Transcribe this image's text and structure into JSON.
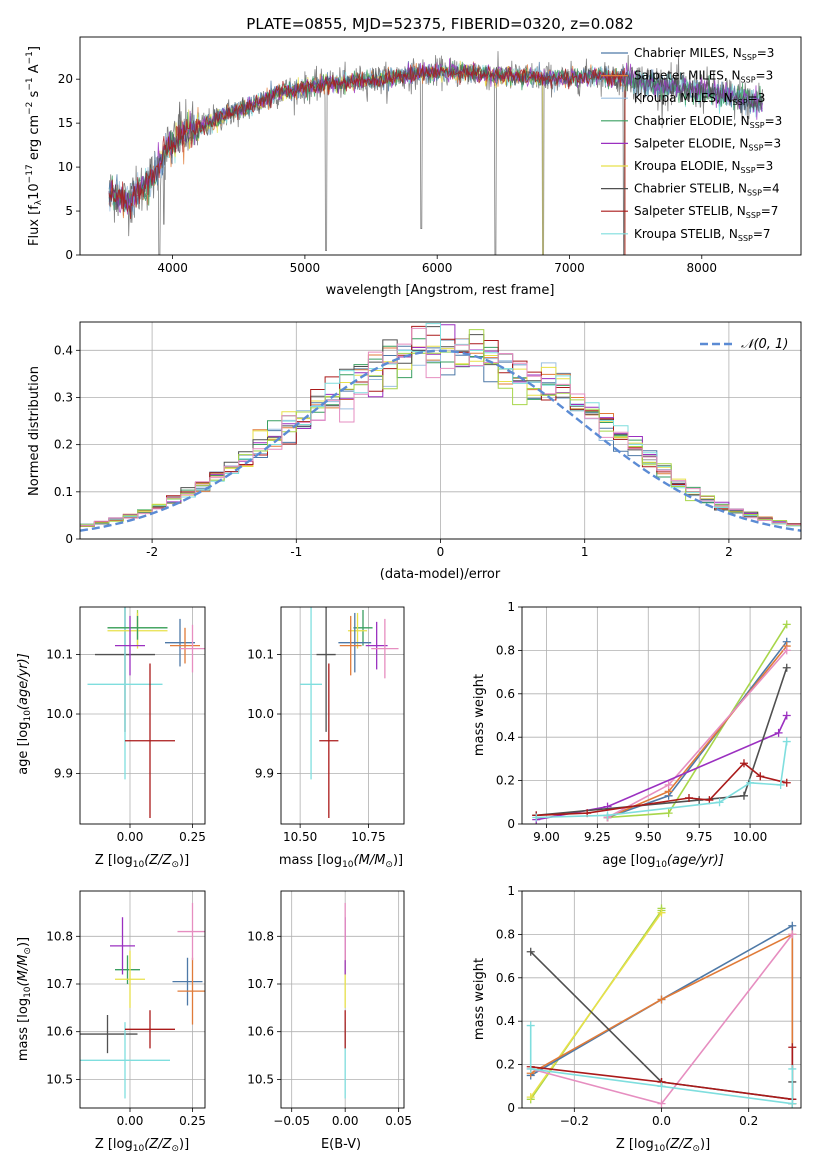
{
  "colors": {
    "Chabrier MILES": "#4e79a7",
    "Salpeter MILES": "#e07b39",
    "Kroupa MILES": "#9bbfe0",
    "Chabrier ELODIE": "#3a9f61",
    "Salpeter ELODIE": "#9b30c0",
    "Kroupa ELODIE": "#e8e04a",
    "Chabrier STELIB": "#505050",
    "Salpeter STELIB": "#aa1a1a",
    "Kroupa STELIB": "#7fdede",
    "extra1": "#a8d64a",
    "extra2": "#e68ec0",
    "gauss": "#5b8bd4",
    "grid": "#b0b0b0"
  },
  "chart_data": [
    {
      "id": "spectrum",
      "type": "line",
      "title": "PLATE=0855, MJD=52375, FIBERID=0320, z=0.082",
      "xlabel": "wavelength [Angstrom, rest frame]",
      "ylabel_main": "Flux [f",
      "ylabel_sub": "λ",
      "ylabel_rest": "10",
      "ylabel_exp": "−17",
      "ylabel_unit": " erg cm",
      "ylabel_exp2": "−2",
      "ylabel_unit2": " s",
      "ylabel_exp3": "−1",
      "ylabel_unit3": " A",
      "ylabel_exp4": "−1",
      "ylabel_end": "]",
      "xlim": [
        3300,
        8750
      ],
      "ylim": [
        0,
        24.8
      ],
      "xticks": [
        4000,
        5000,
        6000,
        7000,
        8000
      ],
      "yticks": [
        0,
        5,
        10,
        15,
        20
      ],
      "legend_position": "top-right",
      "legend": [
        {
          "name": "Chabrier MILES, N",
          "sub": "SSP",
          "tail": "=3",
          "color": "#4e79a7"
        },
        {
          "name": "Salpeter MILES, N",
          "sub": "SSP",
          "tail": "=3",
          "color": "#e07b39"
        },
        {
          "name": "Kroupa MILES, N",
          "sub": "SSP",
          "tail": "=3",
          "color": "#9bbfe0"
        },
        {
          "name": "Chabrier ELODIE, N",
          "sub": "SSP",
          "tail": "=3",
          "color": "#3a9f61"
        },
        {
          "name": "Salpeter ELODIE, N",
          "sub": "SSP",
          "tail": "=3",
          "color": "#9b30c0"
        },
        {
          "name": "Kroupa ELODIE, N",
          "sub": "SSP",
          "tail": "=3",
          "color": "#e8e04a"
        },
        {
          "name": "Chabrier STELIB, N",
          "sub": "SSP",
          "tail": "=4",
          "color": "#505050"
        },
        {
          "name": "Salpeter STELIB, N",
          "sub": "SSP",
          "tail": "=7",
          "color": "#aa1a1a"
        },
        {
          "name": "Kroupa STELIB, N",
          "sub": "SSP",
          "tail": "=7",
          "color": "#7fdede"
        }
      ],
      "anchors": [
        [
          3550,
          7.0
        ],
        [
          3650,
          6.0
        ],
        [
          3800,
          8.0
        ],
        [
          3900,
          10.0
        ],
        [
          3950,
          12.0
        ],
        [
          4050,
          13.5
        ],
        [
          4200,
          14.5
        ],
        [
          4400,
          16.0
        ],
        [
          4600,
          17.0
        ],
        [
          4800,
          18.5
        ],
        [
          5000,
          19.0
        ],
        [
          5200,
          19.5
        ],
        [
          5400,
          19.8
        ],
        [
          5600,
          20.0
        ],
        [
          5800,
          20.5
        ],
        [
          6000,
          20.8
        ],
        [
          6200,
          20.8
        ],
        [
          6400,
          20.5
        ],
        [
          6600,
          20.3
        ],
        [
          6800,
          20.2
        ],
        [
          7000,
          20.0
        ],
        [
          7200,
          20.5
        ],
        [
          7400,
          20.0
        ],
        [
          7600,
          19.5
        ],
        [
          7800,
          19.0
        ],
        [
          8000,
          18.8
        ],
        [
          8200,
          18.0
        ],
        [
          8400,
          17.5
        ]
      ],
      "dips": [
        [
          5160,
          0.5
        ],
        [
          5880,
          3.0
        ],
        [
          6440,
          0.0
        ],
        [
          6800,
          0.0
        ],
        [
          7410,
          0.0
        ],
        [
          3935,
          3.5
        ],
        [
          3900,
          0.0
        ]
      ]
    },
    {
      "id": "residuals",
      "type": "bar",
      "xlabel": "(data-model)/error",
      "ylabel": "Normed distribution",
      "xlim": [
        -2.5,
        2.5
      ],
      "ylim": [
        0,
        0.46
      ],
      "xticks": [
        -2,
        -1,
        0,
        1,
        2
      ],
      "yticks": [
        0.0,
        0.1,
        0.2,
        0.3,
        0.4
      ],
      "legend_label": "𝒩(0, 1)",
      "legend_position": "top-right",
      "bin_width": 0.1
    },
    {
      "id": "age-Z",
      "type": "scatter",
      "xlabel": "Z [log",
      "xlabel_sub": "10",
      "xlabel_rest": "(Z/Z",
      "xlabel_sun": "⊙",
      "xlabel_end": ")]",
      "ylabel": "age  [log",
      "ylabel_sub": "10",
      "ylabel_rest": "(age/yr)]",
      "xlim": [
        -0.2,
        0.3
      ],
      "ylim": [
        9.815,
        10.18
      ],
      "xticks": [
        0.0,
        0.25
      ],
      "xticklabels": [
        "0.00",
        "0.25"
      ],
      "yticks": [
        9.9,
        10.0,
        10.1
      ],
      "yticklabels": [
        "9.9",
        "10.0",
        "10.1"
      ],
      "points": [
        {
          "x": -0.02,
          "y": 10.1,
          "xerr": 0.12,
          "yerr": 0.13,
          "color": "#505050"
        },
        {
          "x": -0.02,
          "y": 10.05,
          "xerr": 0.15,
          "yerr": 0.16,
          "color": "#7fdede"
        },
        {
          "x": 0.08,
          "y": 9.955,
          "xerr": 0.1,
          "yerr": 0.13,
          "color": "#aa1a1a"
        },
        {
          "x": 0.03,
          "y": 10.145,
          "xerr": 0.12,
          "yerr": 0.03,
          "color": "#a8d64a"
        },
        {
          "x": 0.03,
          "y": 10.14,
          "xerr": 0.12,
          "yerr": 0.03,
          "color": "#e8e04a"
        },
        {
          "x": 0.03,
          "y": 10.145,
          "xerr": 0.12,
          "yerr": 0.02,
          "color": "#3a9f61"
        },
        {
          "x": 0.0,
          "y": 10.115,
          "xerr": 0.06,
          "yerr": 0.05,
          "color": "#9b30c0"
        },
        {
          "x": 0.2,
          "y": 10.12,
          "xerr": 0.06,
          "yerr": 0.04,
          "color": "#4e79a7"
        },
        {
          "x": 0.22,
          "y": 10.115,
          "xerr": 0.06,
          "yerr": 0.03,
          "color": "#e07b39"
        },
        {
          "x": 0.25,
          "y": 10.11,
          "xerr": 0.05,
          "yerr": 0.04,
          "color": "#e68ec0"
        }
      ]
    },
    {
      "id": "age-mass",
      "type": "scatter",
      "xlabel": "mass [log",
      "xlabel_sub": "10",
      "xlabel_rest": "(M/M",
      "xlabel_sun": "⊙",
      "xlabel_end": ")]",
      "xlim": [
        10.43,
        10.88
      ],
      "ylim": [
        9.815,
        10.18
      ],
      "xticks": [
        10.5,
        10.75
      ],
      "xticklabels": [
        "10.50",
        "10.75"
      ],
      "yticks": [
        9.9,
        10.0,
        10.1
      ],
      "yticklabels": [
        "9.9",
        "10.0",
        "10.1"
      ],
      "points": [
        {
          "x": 10.595,
          "y": 10.1,
          "xerr": 0.035,
          "yerr": 0.13,
          "color": "#505050"
        },
        {
          "x": 10.54,
          "y": 10.05,
          "xerr": 0.04,
          "yerr": 0.16,
          "color": "#7fdede"
        },
        {
          "x": 10.605,
          "y": 9.955,
          "xerr": 0.035,
          "yerr": 0.13,
          "color": "#aa1a1a"
        },
        {
          "x": 10.73,
          "y": 10.145,
          "xerr": 0.035,
          "yerr": 0.03,
          "color": "#3a9f61"
        },
        {
          "x": 10.71,
          "y": 10.14,
          "xerr": 0.035,
          "yerr": 0.03,
          "color": "#e8e04a"
        },
        {
          "x": 10.7,
          "y": 10.12,
          "xerr": 0.06,
          "yerr": 0.05,
          "color": "#4e79a7"
        },
        {
          "x": 10.685,
          "y": 10.115,
          "xerr": 0.04,
          "yerr": 0.05,
          "color": "#e07b39"
        },
        {
          "x": 10.78,
          "y": 10.115,
          "xerr": 0.04,
          "yerr": 0.04,
          "color": "#9b30c0"
        },
        {
          "x": 10.81,
          "y": 10.11,
          "xerr": 0.05,
          "yerr": 0.05,
          "color": "#e68ec0"
        }
      ]
    },
    {
      "id": "massweight-age",
      "type": "line",
      "xlabel": "age  [log",
      "xlabel_sub": "10",
      "xlabel_rest": "(age/yr)]",
      "ylabel": "mass weight",
      "xlim": [
        8.88,
        10.25
      ],
      "ylim": [
        0,
        1.0
      ],
      "xticks": [
        9.0,
        9.25,
        9.5,
        9.75,
        10.0
      ],
      "xticklabels": [
        "9.00",
        "9.25",
        "9.50",
        "9.75",
        "10.00"
      ],
      "yticks": [
        0.0,
        0.2,
        0.4,
        0.6,
        0.8,
        1.0
      ],
      "series": [
        {
          "color": "#a8d64a",
          "x": [
            9.3,
            9.6,
            10.18
          ],
          "y": [
            0.03,
            0.05,
            0.92
          ]
        },
        {
          "color": "#4e79a7",
          "x": [
            9.3,
            9.6,
            10.18
          ],
          "y": [
            0.03,
            0.13,
            0.84
          ]
        },
        {
          "color": "#e07b39",
          "x": [
            9.3,
            9.6,
            10.18
          ],
          "y": [
            0.03,
            0.15,
            0.82
          ]
        },
        {
          "color": "#e68ec0",
          "x": [
            9.3,
            9.6,
            10.18
          ],
          "y": [
            0.03,
            0.18,
            0.8
          ]
        },
        {
          "color": "#9b30c0",
          "x": [
            8.95,
            9.3,
            10.14,
            10.18
          ],
          "y": [
            0.02,
            0.08,
            0.42,
            0.5
          ]
        },
        {
          "color": "#505050",
          "x": [
            8.95,
            9.75,
            9.97,
            10.18
          ],
          "y": [
            0.04,
            0.11,
            0.13,
            0.72
          ]
        },
        {
          "color": "#aa1a1a",
          "x": [
            8.95,
            9.2,
            9.7,
            9.8,
            9.97,
            10.05,
            10.18
          ],
          "y": [
            0.04,
            0.05,
            0.12,
            0.11,
            0.28,
            0.22,
            0.19
          ]
        },
        {
          "color": "#7fdede",
          "x": [
            8.95,
            9.3,
            9.85,
            10.0,
            10.15,
            10.18
          ],
          "y": [
            0.03,
            0.04,
            0.1,
            0.19,
            0.18,
            0.38
          ]
        }
      ]
    },
    {
      "id": "mass-Z",
      "type": "scatter",
      "xlabel": "Z [log",
      "xlabel_sub": "10",
      "xlabel_rest": "(Z/Z",
      "xlabel_sun": "⊙",
      "xlabel_end": ")]",
      "ylabel": "mass [log",
      "ylabel_sub": "10",
      "ylabel_rest": "(M/M",
      "ylabel_sun": "⊙",
      "ylabel_end": ")]",
      "xlim": [
        -0.2,
        0.3
      ],
      "ylim": [
        10.44,
        10.895
      ],
      "xticks": [
        0.0,
        0.25
      ],
      "xticklabels": [
        "0.00",
        "0.25"
      ],
      "yticks": [
        10.5,
        10.6,
        10.7,
        10.8
      ],
      "yticklabels": [
        "10.5",
        "10.6",
        "10.7",
        "10.8"
      ],
      "points": [
        {
          "x": -0.09,
          "y": 10.595,
          "xerr": 0.12,
          "yerr": 0.04,
          "color": "#505050"
        },
        {
          "x": -0.02,
          "y": 10.54,
          "xerr": 0.18,
          "yerr": 0.08,
          "color": "#7fdede"
        },
        {
          "x": 0.08,
          "y": 10.605,
          "xerr": 0.1,
          "yerr": 0.04,
          "color": "#aa1a1a"
        },
        {
          "x": -0.01,
          "y": 10.73,
          "xerr": 0.05,
          "yerr": 0.03,
          "color": "#3a9f61"
        },
        {
          "x": 0.0,
          "y": 10.71,
          "xerr": 0.06,
          "yerr": 0.06,
          "color": "#e8e04a"
        },
        {
          "x": 0.23,
          "y": 10.705,
          "xerr": 0.06,
          "yerr": 0.05,
          "color": "#4e79a7"
        },
        {
          "x": 0.25,
          "y": 10.685,
          "xerr": 0.06,
          "yerr": 0.07,
          "color": "#e07b39"
        },
        {
          "x": 0.25,
          "y": 10.81,
          "xerr": 0.06,
          "yerr": 0.06,
          "color": "#e68ec0"
        },
        {
          "x": -0.03,
          "y": 10.78,
          "xerr": 0.05,
          "yerr": 0.06,
          "color": "#9b30c0"
        }
      ]
    },
    {
      "id": "mass-ebv",
      "type": "scatter",
      "xlabel": "E(B-V)",
      "xlim": [
        -0.06,
        0.055
      ],
      "ylim": [
        10.44,
        10.895
      ],
      "xticks": [
        -0.05,
        0.0,
        0.05
      ],
      "xticklabels": [
        "−0.05",
        "0.00",
        "0.05"
      ],
      "yticks": [
        10.5,
        10.6,
        10.7,
        10.8
      ],
      "yticklabels": [
        "10.5",
        "10.6",
        "10.7",
        "10.8"
      ],
      "points": [
        {
          "x": 0.0,
          "y": 10.54,
          "xerr": 0,
          "yerr": 0.08,
          "color": "#7fdede"
        },
        {
          "x": 0.0,
          "y": 10.605,
          "xerr": 0,
          "yerr": 0.04,
          "color": "#aa1a1a"
        },
        {
          "x": 0.0,
          "y": 10.71,
          "xerr": 0,
          "yerr": 0.06,
          "color": "#e8e04a"
        },
        {
          "x": 0.0,
          "y": 10.78,
          "xerr": 0,
          "yerr": 0.06,
          "color": "#9b30c0"
        },
        {
          "x": 0.0,
          "y": 10.81,
          "xerr": 0,
          "yerr": 0.06,
          "color": "#e68ec0"
        }
      ]
    },
    {
      "id": "massweight-Z",
      "type": "line",
      "xlabel": "Z [log",
      "xlabel_sub": "10",
      "xlabel_rest": "(Z/Z",
      "xlabel_sun": "⊙",
      "xlabel_end": ")]",
      "ylabel": "mass weight",
      "xlim": [
        -0.32,
        0.32
      ],
      "ylim": [
        0,
        1.0
      ],
      "xticks": [
        -0.2,
        0.0,
        0.2
      ],
      "xticklabels": [
        "−0.2",
        "0.0",
        "0.2"
      ],
      "yticks": [
        0.0,
        0.2,
        0.4,
        0.6,
        0.8,
        1.0
      ],
      "series": [
        {
          "color": "#a8d64a",
          "x": [
            -0.3,
            0.0,
            0.0
          ],
          "y": [
            0.04,
            0.91,
            0.92
          ]
        },
        {
          "color": "#e8e04a",
          "x": [
            -0.3,
            0.0
          ],
          "y": [
            0.05,
            0.9
          ]
        },
        {
          "color": "#4e79a7",
          "x": [
            -0.3,
            0.0,
            0.3,
            0.3
          ],
          "y": [
            0.15,
            0.5,
            0.84,
            0.02
          ]
        },
        {
          "color": "#e07b39",
          "x": [
            -0.3,
            0.0,
            0.3,
            0.3
          ],
          "y": [
            0.16,
            0.5,
            0.8,
            0.02
          ]
        },
        {
          "color": "#e68ec0",
          "x": [
            -0.3,
            0.0,
            0.3
          ],
          "y": [
            0.18,
            0.02,
            0.8
          ]
        },
        {
          "color": "#505050",
          "x": [
            -0.3,
            0.0,
            0.3,
            0.3
          ],
          "y": [
            0.72,
            0.12,
            0.04,
            0.12
          ]
        },
        {
          "color": "#aa1a1a",
          "x": [
            -0.3,
            0.0,
            0.3,
            0.3
          ],
          "y": [
            0.19,
            0.12,
            0.04,
            0.28
          ]
        },
        {
          "color": "#7fdede",
          "x": [
            -0.3,
            -0.3,
            0.0,
            0.3,
            0.3
          ],
          "y": [
            0.38,
            0.18,
            0.1,
            0.02,
            0.18
          ]
        }
      ]
    }
  ]
}
